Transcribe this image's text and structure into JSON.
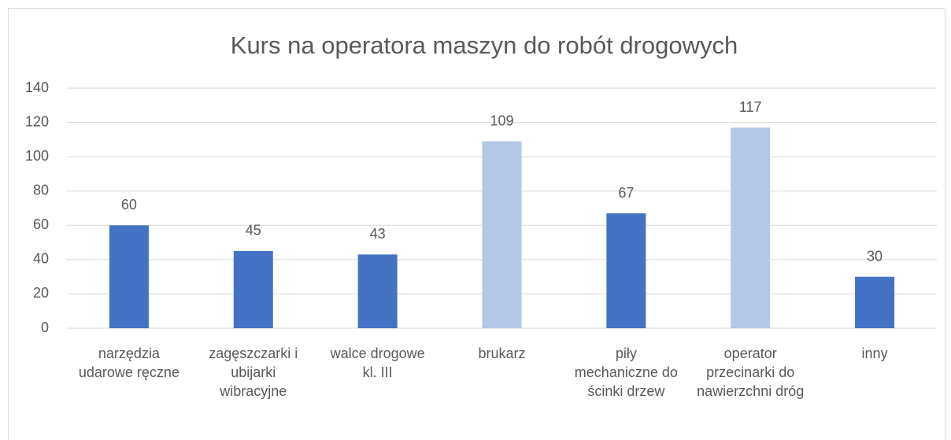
{
  "chart_data": {
    "type": "bar",
    "title": "Kurs na operatora maszyn do robót drogowych",
    "categories": [
      "narzędzia udarowe ręczne",
      "zagęszczarki i ubijarki wibracyjne",
      "walce drogowe kl. III",
      "brukarz",
      "piły mechaniczne do ścinki drzew",
      "operator przecinarki do nawierzchni dróg",
      "inny"
    ],
    "values": [
      60,
      45,
      43,
      109,
      67,
      117,
      30
    ],
    "colors": [
      "#4472c4",
      "#4472c4",
      "#4472c4",
      "#b4c7e7",
      "#4472c4",
      "#b4c7e7",
      "#4472c4"
    ],
    "ylim": [
      0,
      140
    ],
    "yticks": [
      0,
      20,
      40,
      60,
      80,
      100,
      120,
      140
    ],
    "grid": true
  }
}
